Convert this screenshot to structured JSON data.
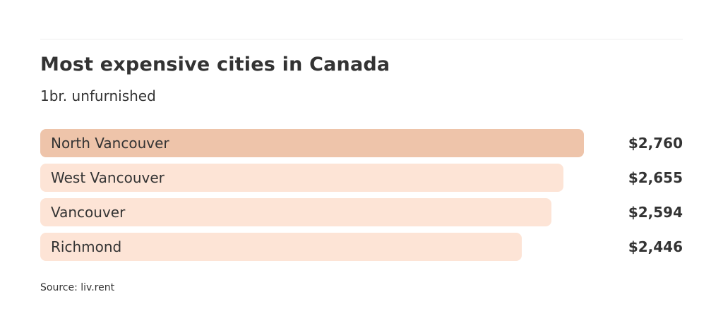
{
  "chart_data": {
    "type": "bar",
    "orientation": "horizontal",
    "title": "Most expensive cities in Canada",
    "subtitle": "1br. unfurnished",
    "categories": [
      "North Vancouver",
      "West Vancouver",
      "Vancouver",
      "Richmond"
    ],
    "values": [
      2760,
      2655,
      2594,
      2446
    ],
    "value_labels": [
      "$2,760",
      "$2,655",
      "$2,594",
      "$2,446"
    ],
    "highlight_color": "#eec4aa",
    "bar_color": "#fde4d6",
    "grid": false,
    "source": "Source: liv.rent"
  }
}
